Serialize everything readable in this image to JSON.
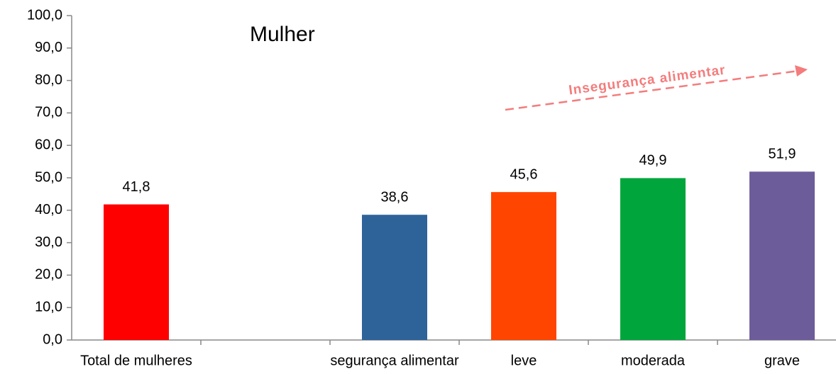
{
  "chart_data": {
    "type": "bar",
    "title": "Mulher",
    "annotations": [
      "Insegurança alimentar"
    ],
    "categories": [
      "Total de mulheres",
      null,
      "segurança alimentar",
      "leve",
      "moderada",
      "grave"
    ],
    "values": [
      41.8,
      null,
      38.6,
      45.6,
      49.9,
      51.9
    ],
    "value_labels": [
      "41,8",
      null,
      "38,6",
      "45,6",
      "49,9",
      "51,9"
    ],
    "colors": [
      "#ff0000",
      null,
      "#2e6399",
      "#ff4500",
      "#00a63c",
      "#6d5c9a"
    ],
    "ylim": [
      0,
      100
    ],
    "yticks": [
      {
        "value": 0,
        "label": "0,0"
      },
      {
        "value": 10,
        "label": "10,0"
      },
      {
        "value": 20,
        "label": "20,0"
      },
      {
        "value": 30,
        "label": "30,0"
      },
      {
        "value": 40,
        "label": "40,0"
      },
      {
        "value": 50,
        "label": "50,0"
      },
      {
        "value": 60,
        "label": "60,0"
      },
      {
        "value": 70,
        "label": "70,0"
      },
      {
        "value": 80,
        "label": "80,0"
      },
      {
        "value": 90,
        "label": "90,0"
      },
      {
        "value": 100,
        "label": "100,0"
      }
    ],
    "grid": false
  }
}
